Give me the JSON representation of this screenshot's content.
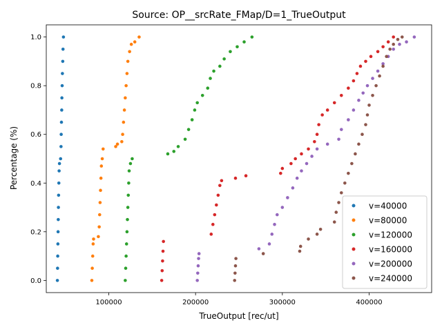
{
  "chart_data": {
    "type": "scatter",
    "title": "Source: OP__srcRate_FMap/D=1_TrueOutput",
    "xlabel": "TrueOutput [rec/ut]",
    "ylabel": "Percentage (%)",
    "xlim": [
      28000,
      472000
    ],
    "ylim": [
      -0.05,
      1.05
    ],
    "x_ticks": [
      100000,
      200000,
      300000,
      400000
    ],
    "x_tick_labels": [
      "100000",
      "200000",
      "300000",
      "400000"
    ],
    "y_ticks": [
      0.0,
      0.2,
      0.4,
      0.6,
      0.8,
      1.0
    ],
    "y_tick_labels": [
      "0.0",
      "0.2",
      "0.4",
      "0.6",
      "0.8",
      "1.0"
    ],
    "grid": false,
    "legend_position": "lower-right",
    "series": [
      {
        "name": "v=40000",
        "color": "#1f77b4",
        "points": [
          [
            40800,
            0.0
          ],
          [
            41000,
            0.05
          ],
          [
            41200,
            0.1
          ],
          [
            41400,
            0.15
          ],
          [
            41600,
            0.2
          ],
          [
            41800,
            0.25
          ],
          [
            42000,
            0.3
          ],
          [
            42200,
            0.35
          ],
          [
            42500,
            0.4
          ],
          [
            42800,
            0.45
          ],
          [
            43200,
            0.48
          ],
          [
            44500,
            0.5
          ],
          [
            45000,
            0.55
          ],
          [
            45200,
            0.6
          ],
          [
            45500,
            0.65
          ],
          [
            45800,
            0.7
          ],
          [
            46000,
            0.75
          ],
          [
            46300,
            0.8
          ],
          [
            46600,
            0.85
          ],
          [
            47000,
            0.9
          ],
          [
            47300,
            0.95
          ],
          [
            47800,
            1.0
          ]
        ]
      },
      {
        "name": "v=80000",
        "color": "#ff7f0e",
        "points": [
          [
            80500,
            0.0
          ],
          [
            81000,
            0.05
          ],
          [
            81500,
            0.1
          ],
          [
            82000,
            0.15
          ],
          [
            82500,
            0.17
          ],
          [
            88000,
            0.18
          ],
          [
            89000,
            0.22
          ],
          [
            89500,
            0.27
          ],
          [
            90000,
            0.32
          ],
          [
            90500,
            0.37
          ],
          [
            91000,
            0.42
          ],
          [
            91500,
            0.47
          ],
          [
            92500,
            0.5
          ],
          [
            93500,
            0.54
          ],
          [
            108000,
            0.55
          ],
          [
            110000,
            0.56
          ],
          [
            115000,
            0.57
          ],
          [
            116000,
            0.6
          ],
          [
            117000,
            0.65
          ],
          [
            118000,
            0.7
          ],
          [
            119000,
            0.75
          ],
          [
            120000,
            0.8
          ],
          [
            121000,
            0.85
          ],
          [
            122000,
            0.9
          ],
          [
            124000,
            0.94
          ],
          [
            126000,
            0.97
          ],
          [
            130000,
            0.98
          ],
          [
            135000,
            1.0
          ]
        ]
      },
      {
        "name": "v=120000",
        "color": "#2ca02c",
        "points": [
          [
            119000,
            0.0
          ],
          [
            119500,
            0.05
          ],
          [
            120000,
            0.1
          ],
          [
            120500,
            0.15
          ],
          [
            121000,
            0.2
          ],
          [
            121500,
            0.25
          ],
          [
            122000,
            0.3
          ],
          [
            122500,
            0.35
          ],
          [
            123000,
            0.4
          ],
          [
            123500,
            0.45
          ],
          [
            125000,
            0.48
          ],
          [
            127000,
            0.5
          ],
          [
            168000,
            0.52
          ],
          [
            175000,
            0.53
          ],
          [
            180000,
            0.55
          ],
          [
            188000,
            0.58
          ],
          [
            192000,
            0.62
          ],
          [
            196000,
            0.66
          ],
          [
            199000,
            0.7
          ],
          [
            202000,
            0.73
          ],
          [
            208000,
            0.76
          ],
          [
            214000,
            0.79
          ],
          [
            217000,
            0.83
          ],
          [
            221000,
            0.86
          ],
          [
            228000,
            0.88
          ],
          [
            233000,
            0.91
          ],
          [
            240000,
            0.94
          ],
          [
            248000,
            0.96
          ],
          [
            256000,
            0.98
          ],
          [
            265000,
            1.0
          ]
        ]
      },
      {
        "name": "v=160000",
        "color": "#d62728",
        "points": [
          [
            161000,
            0.0
          ],
          [
            161500,
            0.04
          ],
          [
            162000,
            0.08
          ],
          [
            162500,
            0.12
          ],
          [
            163000,
            0.16
          ],
          [
            218000,
            0.19
          ],
          [
            220000,
            0.23
          ],
          [
            222000,
            0.27
          ],
          [
            224000,
            0.31
          ],
          [
            226000,
            0.35
          ],
          [
            228000,
            0.39
          ],
          [
            230000,
            0.41
          ],
          [
            246000,
            0.42
          ],
          [
            258000,
            0.43
          ],
          [
            298000,
            0.44
          ],
          [
            300000,
            0.46
          ],
          [
            310000,
            0.48
          ],
          [
            315000,
            0.5
          ],
          [
            322000,
            0.52
          ],
          [
            330000,
            0.54
          ],
          [
            337000,
            0.57
          ],
          [
            340000,
            0.6
          ],
          [
            342000,
            0.64
          ],
          [
            346000,
            0.68
          ],
          [
            352000,
            0.7
          ],
          [
            360000,
            0.73
          ],
          [
            368000,
            0.76
          ],
          [
            376000,
            0.79
          ],
          [
            382000,
            0.82
          ],
          [
            386000,
            0.85
          ],
          [
            390000,
            0.88
          ],
          [
            396000,
            0.9
          ],
          [
            402000,
            0.92
          ],
          [
            410000,
            0.94
          ],
          [
            416000,
            0.96
          ],
          [
            422000,
            0.98
          ],
          [
            428000,
            1.0
          ]
        ]
      },
      {
        "name": "v=200000",
        "color": "#9467bd",
        "points": [
          [
            202000,
            0.0
          ],
          [
            202500,
            0.03
          ],
          [
            203000,
            0.06
          ],
          [
            203500,
            0.09
          ],
          [
            204000,
            0.11
          ],
          [
            273000,
            0.13
          ],
          [
            285000,
            0.15
          ],
          [
            288000,
            0.19
          ],
          [
            291000,
            0.23
          ],
          [
            294000,
            0.27
          ],
          [
            300000,
            0.3
          ],
          [
            306000,
            0.34
          ],
          [
            312000,
            0.38
          ],
          [
            317000,
            0.42
          ],
          [
            322000,
            0.45
          ],
          [
            328000,
            0.48
          ],
          [
            334000,
            0.51
          ],
          [
            340000,
            0.54
          ],
          [
            352000,
            0.56
          ],
          [
            365000,
            0.58
          ],
          [
            368000,
            0.62
          ],
          [
            376000,
            0.66
          ],
          [
            382000,
            0.7
          ],
          [
            388000,
            0.74
          ],
          [
            393000,
            0.77
          ],
          [
            398000,
            0.8
          ],
          [
            404000,
            0.83
          ],
          [
            410000,
            0.86
          ],
          [
            416000,
            0.89
          ],
          [
            422000,
            0.92
          ],
          [
            428000,
            0.95
          ],
          [
            435000,
            0.97
          ],
          [
            443000,
            0.98
          ],
          [
            452000,
            1.0
          ]
        ]
      },
      {
        "name": "v=240000",
        "color": "#8c564b",
        "points": [
          [
            245000,
            0.0
          ],
          [
            245500,
            0.03
          ],
          [
            246000,
            0.06
          ],
          [
            246500,
            0.09
          ],
          [
            278000,
            0.11
          ],
          [
            320000,
            0.12
          ],
          [
            321000,
            0.14
          ],
          [
            330000,
            0.17
          ],
          [
            340000,
            0.19
          ],
          [
            344000,
            0.21
          ],
          [
            360000,
            0.24
          ],
          [
            362000,
            0.28
          ],
          [
            365000,
            0.32
          ],
          [
            368000,
            0.36
          ],
          [
            372000,
            0.4
          ],
          [
            376000,
            0.44
          ],
          [
            380000,
            0.48
          ],
          [
            384000,
            0.52
          ],
          [
            388000,
            0.56
          ],
          [
            392000,
            0.6
          ],
          [
            396000,
            0.64
          ],
          [
            398000,
            0.68
          ],
          [
            400000,
            0.72
          ],
          [
            404000,
            0.76
          ],
          [
            408000,
            0.8
          ],
          [
            412000,
            0.84
          ],
          [
            416000,
            0.88
          ],
          [
            420000,
            0.92
          ],
          [
            424000,
            0.95
          ],
          [
            428000,
            0.97
          ],
          [
            433000,
            0.99
          ],
          [
            438000,
            1.0
          ]
        ]
      }
    ]
  }
}
